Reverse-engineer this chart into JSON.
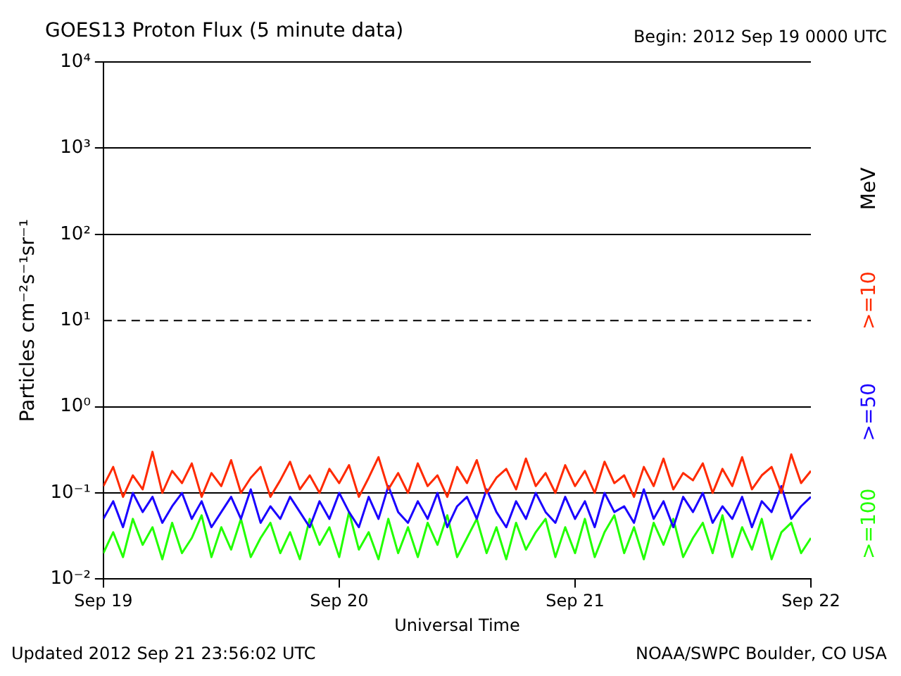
{
  "chart_data": {
    "type": "line",
    "title": "GOES13 Proton Flux (5 minute data)",
    "subtitle": "Begin: 2012 Sep 19 0000 UTC",
    "xlabel": "Universal Time",
    "ylabel": "Particles cm⁻²s⁻¹sr⁻¹",
    "legend_title": "MeV",
    "annotations": [
      "Updated 2012 Sep 21 23:56:02 UTC",
      "NOAA/SWPC Boulder, CO USA"
    ],
    "x": [
      "2012-09-19T00:00",
      "2012-09-19T01:00",
      "2012-09-19T02:00",
      "2012-09-19T03:00",
      "2012-09-19T04:00",
      "2012-09-19T05:00",
      "2012-09-19T06:00",
      "2012-09-19T07:00",
      "2012-09-19T08:00",
      "2012-09-19T09:00",
      "2012-09-19T10:00",
      "2012-09-19T11:00",
      "2012-09-19T12:00",
      "2012-09-19T13:00",
      "2012-09-19T14:00",
      "2012-09-19T15:00",
      "2012-09-19T16:00",
      "2012-09-19T17:00",
      "2012-09-19T18:00",
      "2012-09-19T19:00",
      "2012-09-19T20:00",
      "2012-09-19T21:00",
      "2012-09-19T22:00",
      "2012-09-19T23:00",
      "2012-09-20T00:00",
      "2012-09-20T01:00",
      "2012-09-20T02:00",
      "2012-09-20T03:00",
      "2012-09-20T04:00",
      "2012-09-20T05:00",
      "2012-09-20T06:00",
      "2012-09-20T07:00",
      "2012-09-20T08:00",
      "2012-09-20T09:00",
      "2012-09-20T10:00",
      "2012-09-20T11:00",
      "2012-09-20T12:00",
      "2012-09-20T13:00",
      "2012-09-20T14:00",
      "2012-09-20T15:00",
      "2012-09-20T16:00",
      "2012-09-20T17:00",
      "2012-09-20T18:00",
      "2012-09-20T19:00",
      "2012-09-20T20:00",
      "2012-09-20T21:00",
      "2012-09-20T22:00",
      "2012-09-20T23:00",
      "2012-09-21T00:00",
      "2012-09-21T01:00",
      "2012-09-21T02:00",
      "2012-09-21T03:00",
      "2012-09-21T04:00",
      "2012-09-21T05:00",
      "2012-09-21T06:00",
      "2012-09-21T07:00",
      "2012-09-21T08:00",
      "2012-09-21T09:00",
      "2012-09-21T10:00",
      "2012-09-21T11:00",
      "2012-09-21T12:00",
      "2012-09-21T13:00",
      "2012-09-21T14:00",
      "2012-09-21T15:00",
      "2012-09-21T16:00",
      "2012-09-21T17:00",
      "2012-09-21T18:00",
      "2012-09-21T19:00",
      "2012-09-21T20:00",
      "2012-09-21T21:00",
      "2012-09-21T22:00",
      "2012-09-21T23:00",
      "2012-09-22T00:00"
    ],
    "series": [
      {
        "name": ">=10",
        "color": "#ff2a00",
        "values": [
          0.12,
          0.2,
          0.09,
          0.16,
          0.11,
          0.3,
          0.1,
          0.18,
          0.13,
          0.22,
          0.09,
          0.17,
          0.12,
          0.24,
          0.1,
          0.15,
          0.2,
          0.09,
          0.14,
          0.23,
          0.11,
          0.16,
          0.1,
          0.19,
          0.13,
          0.21,
          0.09,
          0.15,
          0.26,
          0.11,
          0.17,
          0.1,
          0.22,
          0.12,
          0.16,
          0.09,
          0.2,
          0.13,
          0.24,
          0.1,
          0.15,
          0.19,
          0.11,
          0.25,
          0.12,
          0.17,
          0.1,
          0.21,
          0.12,
          0.18,
          0.1,
          0.23,
          0.13,
          0.16,
          0.09,
          0.2,
          0.12,
          0.25,
          0.11,
          0.17,
          0.14,
          0.22,
          0.1,
          0.19,
          0.12,
          0.26,
          0.11,
          0.16,
          0.2,
          0.1,
          0.28,
          0.13,
          0.18
        ]
      },
      {
        "name": ">=50",
        "color": "#1a00ff",
        "values": [
          0.05,
          0.08,
          0.04,
          0.1,
          0.06,
          0.09,
          0.045,
          0.07,
          0.1,
          0.05,
          0.08,
          0.04,
          0.06,
          0.09,
          0.05,
          0.11,
          0.045,
          0.07,
          0.05,
          0.09,
          0.06,
          0.04,
          0.08,
          0.05,
          0.1,
          0.06,
          0.04,
          0.09,
          0.05,
          0.12,
          0.06,
          0.045,
          0.08,
          0.05,
          0.1,
          0.04,
          0.07,
          0.09,
          0.05,
          0.11,
          0.06,
          0.04,
          0.08,
          0.05,
          0.1,
          0.06,
          0.045,
          0.09,
          0.05,
          0.08,
          0.04,
          0.1,
          0.06,
          0.07,
          0.045,
          0.11,
          0.05,
          0.08,
          0.04,
          0.09,
          0.06,
          0.1,
          0.045,
          0.07,
          0.05,
          0.09,
          0.04,
          0.08,
          0.06,
          0.12,
          0.05,
          0.07,
          0.09
        ]
      },
      {
        "name": ">=100",
        "color": "#22ff00",
        "values": [
          0.02,
          0.035,
          0.018,
          0.05,
          0.025,
          0.04,
          0.017,
          0.045,
          0.02,
          0.03,
          0.055,
          0.018,
          0.04,
          0.022,
          0.05,
          0.018,
          0.03,
          0.045,
          0.02,
          0.035,
          0.017,
          0.05,
          0.025,
          0.04,
          0.018,
          0.06,
          0.022,
          0.035,
          0.017,
          0.05,
          0.02,
          0.04,
          0.018,
          0.045,
          0.025,
          0.055,
          0.018,
          0.03,
          0.05,
          0.02,
          0.04,
          0.017,
          0.045,
          0.022,
          0.035,
          0.05,
          0.018,
          0.04,
          0.02,
          0.05,
          0.018,
          0.035,
          0.055,
          0.02,
          0.04,
          0.017,
          0.045,
          0.025,
          0.05,
          0.018,
          0.03,
          0.045,
          0.02,
          0.055,
          0.018,
          0.04,
          0.022,
          0.05,
          0.017,
          0.035,
          0.045,
          0.02,
          0.03
        ]
      }
    ],
    "log": "y",
    "xlim": [
      "2012-09-19",
      "2012-09-22"
    ],
    "xticks": [
      {
        "value": "2012-09-19",
        "label": "Sep 19"
      },
      {
        "value": "2012-09-20",
        "label": "Sep 20"
      },
      {
        "value": "2012-09-21",
        "label": "Sep 21"
      },
      {
        "value": "2012-09-22",
        "label": "Sep 22"
      }
    ],
    "ylim": [
      0.01,
      10000
    ],
    "yticks": [
      {
        "value": 0.01,
        "label": "10⁻²"
      },
      {
        "value": 0.1,
        "label": "10⁻¹"
      },
      {
        "value": 1,
        "label": "10⁰"
      },
      {
        "value": 10,
        "label": "10¹"
      },
      {
        "value": 100,
        "label": "10²"
      },
      {
        "value": 1000,
        "label": "10³"
      },
      {
        "value": 10000,
        "label": "10⁴"
      }
    ],
    "grid": "y",
    "ref_lines": [
      {
        "axis": "y",
        "value": 10,
        "line_style": "dashed"
      }
    ],
    "legend": "right"
  }
}
